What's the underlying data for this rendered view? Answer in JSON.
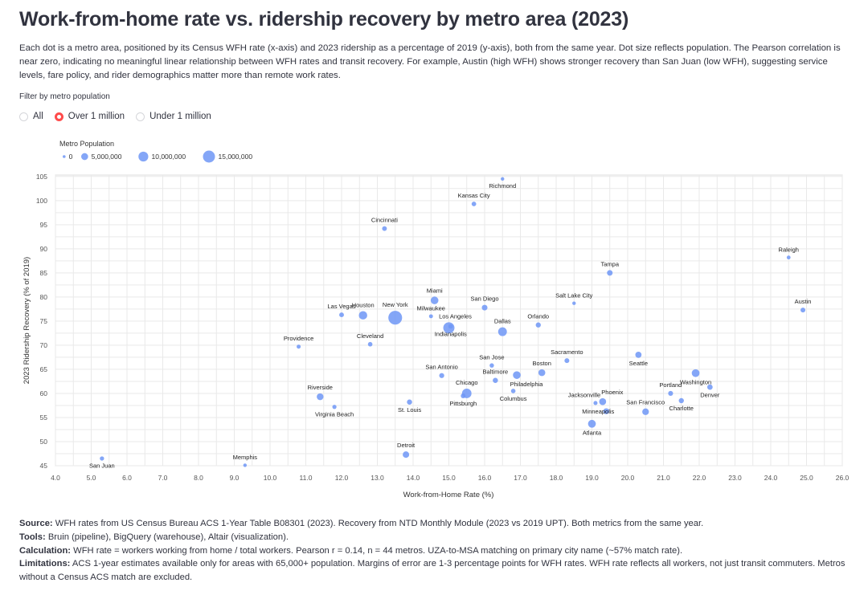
{
  "header": {
    "title": "Work-from-home rate vs. ridership recovery by metro area (2023)",
    "description": "Each dot is a metro area, positioned by its Census WFH rate (x-axis) and 2023 ridership as a percentage of 2019 (y-axis), both from the same year. Dot size reflects population. The Pearson correlation is near zero, indicating no meaningful linear relationship between WFH rates and transit recovery. For example, Austin (high WFH) shows stronger recovery than San Juan (low WFH), suggesting service levels, fare policy, and rider demographics matter more than remote work rates."
  },
  "filter": {
    "label": "Filter by metro population",
    "options": [
      "All",
      "Over 1 million",
      "Under 1 million"
    ],
    "selected": "Over 1 million",
    "accent_color": "#ff4b4b"
  },
  "chart_data": {
    "type": "scatter",
    "xlabel": "Work-from-Home Rate (%)",
    "ylabel": "2023 Ridership Recovery (% of 2019)",
    "xlim": [
      4,
      26
    ],
    "ylim": [
      45,
      105
    ],
    "xticks": [
      "4.0",
      "5.0",
      "6.0",
      "7.0",
      "8.0",
      "9.0",
      "10.0",
      "11.0",
      "12.0",
      "13.0",
      "14.0",
      "15.0",
      "16.0",
      "17.0",
      "18.0",
      "19.0",
      "20.0",
      "21.0",
      "22.0",
      "23.0",
      "24.0",
      "25.0",
      "26.0"
    ],
    "yticks": [
      "45",
      "50",
      "55",
      "60",
      "65",
      "70",
      "75",
      "80",
      "85",
      "90",
      "95",
      "100",
      "105"
    ],
    "grid": true,
    "point_color": "#6f96f6",
    "size_legend": {
      "title": "Metro Population",
      "values": [
        0,
        5000000,
        10000000,
        15000000
      ],
      "labels": [
        "0",
        "5,000,000",
        "10,000,000",
        "15,000,000"
      ],
      "placement": "top-left"
    },
    "points": [
      {
        "name": "San Juan",
        "x": 5.3,
        "y": 46.5,
        "pop": 1900000
      },
      {
        "name": "Memphis",
        "x": 9.3,
        "y": 45.1,
        "pop": 1300000
      },
      {
        "name": "Richmond",
        "x": 16.5,
        "y": 104.5,
        "pop": 1300000
      },
      {
        "name": "Kansas City",
        "x": 15.7,
        "y": 99.3,
        "pop": 2200000
      },
      {
        "name": "Cincinnati",
        "x": 13.2,
        "y": 94.2,
        "pop": 2300000
      },
      {
        "name": "Raleigh",
        "x": 24.5,
        "y": 88.2,
        "pop": 1500000
      },
      {
        "name": "Austin",
        "x": 24.9,
        "y": 77.3,
        "pop": 2400000
      },
      {
        "name": "Tampa",
        "x": 19.5,
        "y": 85.0,
        "pop": 3300000
      },
      {
        "name": "Salt Lake City",
        "x": 18.5,
        "y": 78.7,
        "pop": 1300000
      },
      {
        "name": "Miami",
        "x": 14.6,
        "y": 79.3,
        "pop": 6100000
      },
      {
        "name": "San Diego",
        "x": 16.0,
        "y": 77.8,
        "pop": 3300000
      },
      {
        "name": "Las Vegas",
        "x": 12.0,
        "y": 76.3,
        "pop": 2300000
      },
      {
        "name": "Houston",
        "x": 12.6,
        "y": 76.2,
        "pop": 7300000
      },
      {
        "name": "New York",
        "x": 13.5,
        "y": 75.7,
        "pop": 19500000
      },
      {
        "name": "Milwaukee",
        "x": 14.5,
        "y": 76.0,
        "pop": 1600000
      },
      {
        "name": "Los Angeles",
        "x": 15.0,
        "y": 73.6,
        "pop": 13000000
      },
      {
        "name": "Indianapolis",
        "x": 15.05,
        "y": 73.9,
        "pop": 2100000
      },
      {
        "name": "Dallas",
        "x": 16.5,
        "y": 72.8,
        "pop": 7900000
      },
      {
        "name": "Orlando",
        "x": 17.5,
        "y": 74.2,
        "pop": 2700000
      },
      {
        "name": "Cleveland",
        "x": 12.8,
        "y": 70.2,
        "pop": 2100000
      },
      {
        "name": "Providence",
        "x": 10.8,
        "y": 69.7,
        "pop": 1700000
      },
      {
        "name": "Seattle",
        "x": 20.3,
        "y": 68.0,
        "pop": 4000000
      },
      {
        "name": "Sacramento",
        "x": 18.3,
        "y": 66.8,
        "pop": 2400000
      },
      {
        "name": "San Jose",
        "x": 16.2,
        "y": 65.8,
        "pop": 2000000
      },
      {
        "name": "Boston",
        "x": 17.6,
        "y": 64.3,
        "pop": 4900000
      },
      {
        "name": "Philadelphia",
        "x": 16.9,
        "y": 63.8,
        "pop": 6200000
      },
      {
        "name": "Baltimore",
        "x": 16.3,
        "y": 62.7,
        "pop": 2800000
      },
      {
        "name": "San Antonio",
        "x": 14.8,
        "y": 63.7,
        "pop": 2600000
      },
      {
        "name": "Washington",
        "x": 21.9,
        "y": 64.2,
        "pop": 6300000
      },
      {
        "name": "Denver",
        "x": 22.3,
        "y": 61.3,
        "pop": 3000000
      },
      {
        "name": "Portland",
        "x": 21.2,
        "y": 60.0,
        "pop": 2500000
      },
      {
        "name": "Charlotte",
        "x": 21.5,
        "y": 58.5,
        "pop": 2700000
      },
      {
        "name": "Columbus",
        "x": 16.8,
        "y": 60.5,
        "pop": 2100000
      },
      {
        "name": "Chicago",
        "x": 15.5,
        "y": 60.0,
        "pop": 9300000
      },
      {
        "name": "Pittsburgh",
        "x": 15.4,
        "y": 59.5,
        "pop": 2400000
      },
      {
        "name": "Riverside",
        "x": 11.4,
        "y": 59.3,
        "pop": 4700000
      },
      {
        "name": "Virginia Beach",
        "x": 11.8,
        "y": 57.2,
        "pop": 1800000
      },
      {
        "name": "St. Louis",
        "x": 13.9,
        "y": 58.2,
        "pop": 2800000
      },
      {
        "name": "Jacksonville",
        "x": 19.1,
        "y": 58.0,
        "pop": 1700000
      },
      {
        "name": "Phoenix",
        "x": 19.3,
        "y": 58.3,
        "pop": 5000000
      },
      {
        "name": "Minneapolis",
        "x": 19.4,
        "y": 56.3,
        "pop": 3700000
      },
      {
        "name": "San Francisco",
        "x": 20.5,
        "y": 56.2,
        "pop": 4600000
      },
      {
        "name": "Atlanta",
        "x": 19.0,
        "y": 53.7,
        "pop": 6300000
      },
      {
        "name": "Detroit",
        "x": 13.8,
        "y": 47.3,
        "pop": 4300000
      }
    ]
  },
  "footer": {
    "source_label": "Source:",
    "source": "WFH rates from US Census Bureau ACS 1-Year Table B08301 (2023). Recovery from NTD Monthly Module (2023 vs 2019 UPT). Both metrics from the same year.",
    "tools_label": "Tools:",
    "tools": "Bruin (pipeline), BigQuery (warehouse), Altair (visualization).",
    "calc_label": "Calculation:",
    "calc": "WFH rate = workers working from home / total workers. Pearson r = 0.14, n = 44 metros. UZA-to-MSA matching on primary city name (~57% match rate).",
    "limits_label": "Limitations:",
    "limits": "ACS 1-year estimates available only for areas with 65,000+ population. Margins of error are 1-3 percentage points for WFH rates. WFH rate reflects all workers, not just transit commuters. Metros without a Census ACS match are excluded."
  }
}
